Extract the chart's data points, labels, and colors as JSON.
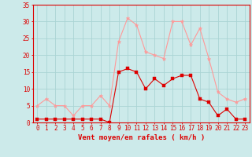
{
  "x": [
    0,
    1,
    2,
    3,
    4,
    5,
    6,
    7,
    8,
    9,
    10,
    11,
    12,
    13,
    14,
    15,
    16,
    17,
    18,
    19,
    20,
    21,
    22,
    23
  ],
  "mean_wind": [
    1,
    1,
    1,
    1,
    1,
    1,
    1,
    1,
    0,
    15,
    16,
    15,
    10,
    13,
    11,
    13,
    14,
    14,
    7,
    6,
    2,
    4,
    1,
    1
  ],
  "gust_wind": [
    5,
    7,
    5,
    5,
    2,
    5,
    5,
    8,
    5,
    24,
    31,
    29,
    21,
    20,
    19,
    30,
    30,
    23,
    28,
    19,
    9,
    7,
    6,
    7
  ],
  "bg_color": "#cceaea",
  "grid_color": "#aad4d4",
  "line_mean_color": "#dd0000",
  "line_gust_color": "#ff9999",
  "xlabel": "Vent moyen/en rafales ( km/h )",
  "ylim": [
    0,
    35
  ],
  "xlim_min": -0.5,
  "xlim_max": 23.5,
  "yticks": [
    0,
    5,
    10,
    15,
    20,
    25,
    30,
    35
  ],
  "xticks": [
    0,
    1,
    2,
    3,
    4,
    5,
    6,
    7,
    8,
    9,
    10,
    11,
    12,
    13,
    14,
    15,
    16,
    17,
    18,
    19,
    20,
    21,
    22,
    23
  ],
  "tick_fontsize": 5.5,
  "label_fontsize": 6.5
}
